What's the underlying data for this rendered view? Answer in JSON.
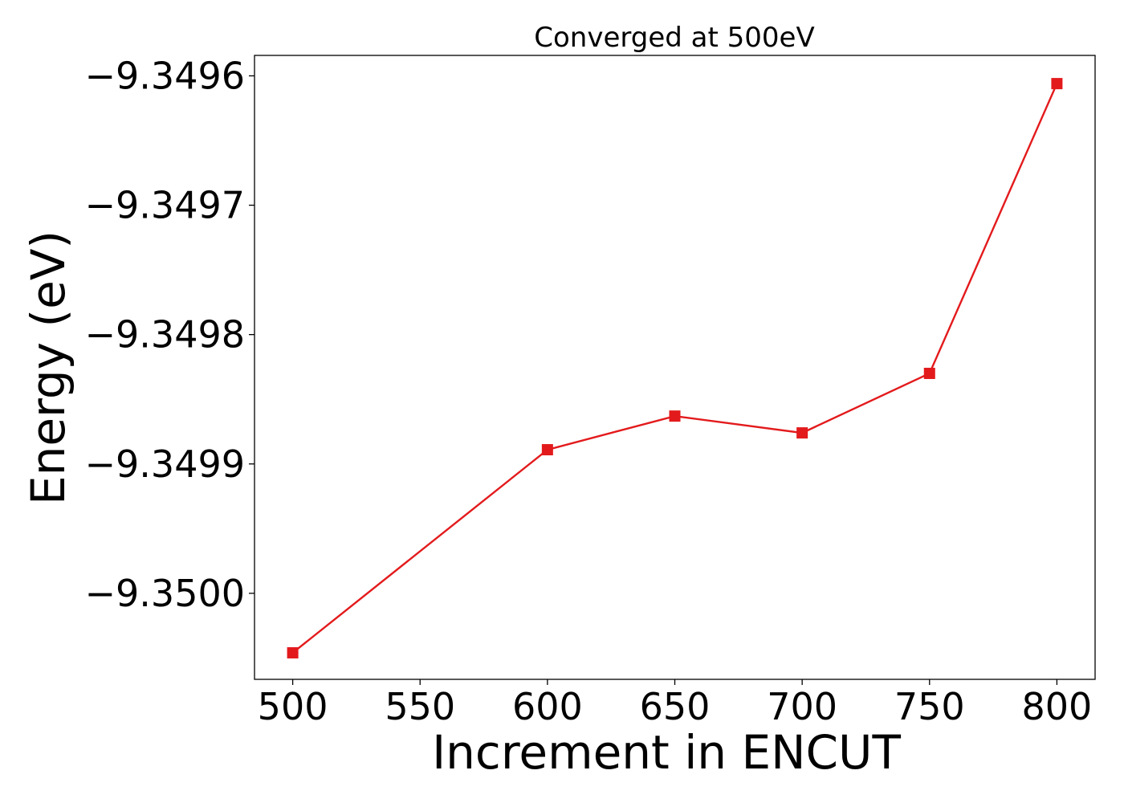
{
  "chart_data": {
    "type": "line",
    "title": "Converged at 500eV",
    "xlabel": "Increment in ENCUT",
    "ylabel": "Energy (eV)",
    "x": [
      500,
      600,
      650,
      700,
      750,
      800
    ],
    "series": [
      {
        "values": [
          -9.350046,
          -9.349889,
          -9.349863,
          -9.349876,
          -9.34983,
          -9.349606
        ],
        "color": "#e31a1c",
        "marker": "square"
      }
    ],
    "xlim": [
      485,
      815
    ],
    "ylim": [
      -9.3500665,
      -9.3495842
    ],
    "xticks": [
      500,
      550,
      600,
      650,
      700,
      750,
      800
    ],
    "xtick_labels": [
      "500",
      "550",
      "600",
      "650",
      "700",
      "750",
      "800"
    ],
    "yticks": [
      -9.35,
      -9.3499,
      -9.3498,
      -9.3497,
      -9.3496
    ],
    "ytick_labels": [
      "−9.3500",
      "−9.3499",
      "−9.3498",
      "−9.3497",
      "−9.3496"
    ],
    "grid": false,
    "legend": "none"
  }
}
